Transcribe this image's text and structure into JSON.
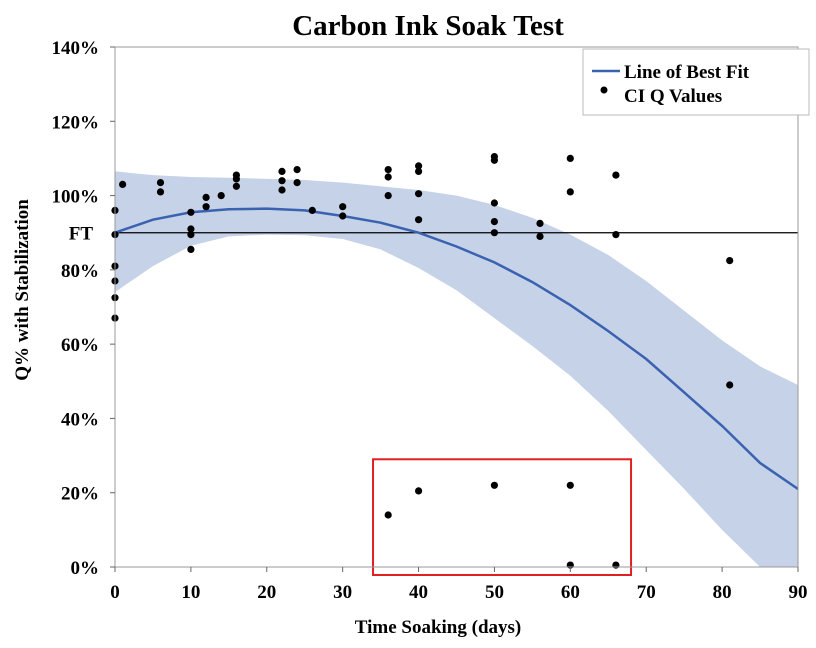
{
  "colors": {
    "fit_line": "#3a62b0",
    "band": "#c5d2e8",
    "points": "#000000",
    "frame": "#999999",
    "reference_line": "#000000",
    "highlight_box": "#e02020"
  },
  "chart_data": {
    "type": "scatter",
    "title": "Carbon Ink Soak Test",
    "xlabel": "Time Soaking (days)",
    "ylabel": "Q% with Stabilization",
    "xlim": [
      0,
      90
    ],
    "ylim": [
      0,
      140
    ],
    "x_ticks": [
      0,
      10,
      20,
      30,
      40,
      50,
      60,
      70,
      80,
      90
    ],
    "y_ticks": [
      {
        "value": 0,
        "label": "0%"
      },
      {
        "value": 20,
        "label": "20%"
      },
      {
        "value": 40,
        "label": "40%"
      },
      {
        "value": 60,
        "label": "60%"
      },
      {
        "value": 80,
        "label": "80%"
      },
      {
        "value": 100,
        "label": "100%"
      },
      {
        "value": 120,
        "label": "120%"
      },
      {
        "value": 140,
        "label": "140%"
      }
    ],
    "reference_line": {
      "label": "FT",
      "value": 90
    },
    "legend": {
      "position": "top-right",
      "entries": [
        {
          "label": "Line of Best Fit",
          "kind": "line"
        },
        {
          "label": "CI Q Values",
          "kind": "point"
        }
      ]
    },
    "series": [
      {
        "name": "CI Q Values",
        "kind": "scatter",
        "points": [
          [
            0,
            96
          ],
          [
            0,
            89.5
          ],
          [
            0,
            81
          ],
          [
            0,
            77
          ],
          [
            0,
            72.5
          ],
          [
            0,
            67
          ],
          [
            1,
            103
          ],
          [
            6,
            103.5
          ],
          [
            6,
            101
          ],
          [
            10,
            95.5
          ],
          [
            10,
            91
          ],
          [
            10,
            89.5
          ],
          [
            10,
            85.5
          ],
          [
            12,
            99.5
          ],
          [
            12,
            97
          ],
          [
            14,
            100
          ],
          [
            16,
            105.5
          ],
          [
            16,
            104.5
          ],
          [
            16,
            102.5
          ],
          [
            22,
            106.5
          ],
          [
            22,
            104
          ],
          [
            22,
            101.5
          ],
          [
            24,
            107
          ],
          [
            24,
            103.5
          ],
          [
            26,
            96
          ],
          [
            30,
            97
          ],
          [
            30,
            94.5
          ],
          [
            36,
            107
          ],
          [
            36,
            105
          ],
          [
            36,
            100
          ],
          [
            40,
            108
          ],
          [
            40,
            106.5
          ],
          [
            40,
            100.5
          ],
          [
            40,
            93.5
          ],
          [
            50,
            110.5
          ],
          [
            50,
            109.5
          ],
          [
            50,
            98
          ],
          [
            50,
            93
          ],
          [
            50,
            90
          ],
          [
            56,
            92.5
          ],
          [
            56,
            89
          ],
          [
            60,
            110
          ],
          [
            60,
            101
          ],
          [
            66,
            105.5
          ],
          [
            66,
            89.5
          ],
          [
            81,
            82.5
          ],
          [
            81,
            49
          ],
          [
            36,
            14
          ],
          [
            40,
            20.5
          ],
          [
            50,
            22
          ],
          [
            60,
            22
          ],
          [
            60,
            0.5
          ],
          [
            66,
            0.5
          ]
        ]
      },
      {
        "name": "Line of Best Fit",
        "kind": "line",
        "x": [
          0,
          5,
          10,
          15,
          20,
          25,
          30,
          35,
          40,
          45,
          50,
          55,
          60,
          65,
          70,
          75,
          80,
          85,
          90
        ],
        "y": [
          90,
          93.5,
          95.5,
          96.3,
          96.5,
          96,
          94.5,
          92.7,
          90,
          86.3,
          82,
          76.7,
          70.5,
          63.5,
          56,
          47,
          38,
          28,
          21
        ]
      },
      {
        "name": "Confidence Band",
        "kind": "band",
        "x": [
          0,
          5,
          10,
          15,
          20,
          25,
          30,
          35,
          40,
          45,
          50,
          55,
          60,
          65,
          70,
          75,
          80,
          85,
          90
        ],
        "upper": [
          106.5,
          105.5,
          105,
          104.8,
          104.5,
          104.2,
          103.5,
          102.5,
          101.5,
          100,
          97.5,
          94,
          89.5,
          84,
          77,
          69,
          61,
          54,
          49
        ],
        "lower": [
          74,
          81,
          86.5,
          89,
          89.5,
          89.3,
          88.3,
          85.5,
          80.5,
          74.5,
          67,
          59.5,
          51.5,
          42,
          31.5,
          21,
          10,
          0,
          0
        ]
      }
    ],
    "annotations": [
      {
        "type": "highlight_box",
        "x_range": [
          34,
          68
        ],
        "y_range": [
          0,
          29
        ]
      }
    ]
  }
}
